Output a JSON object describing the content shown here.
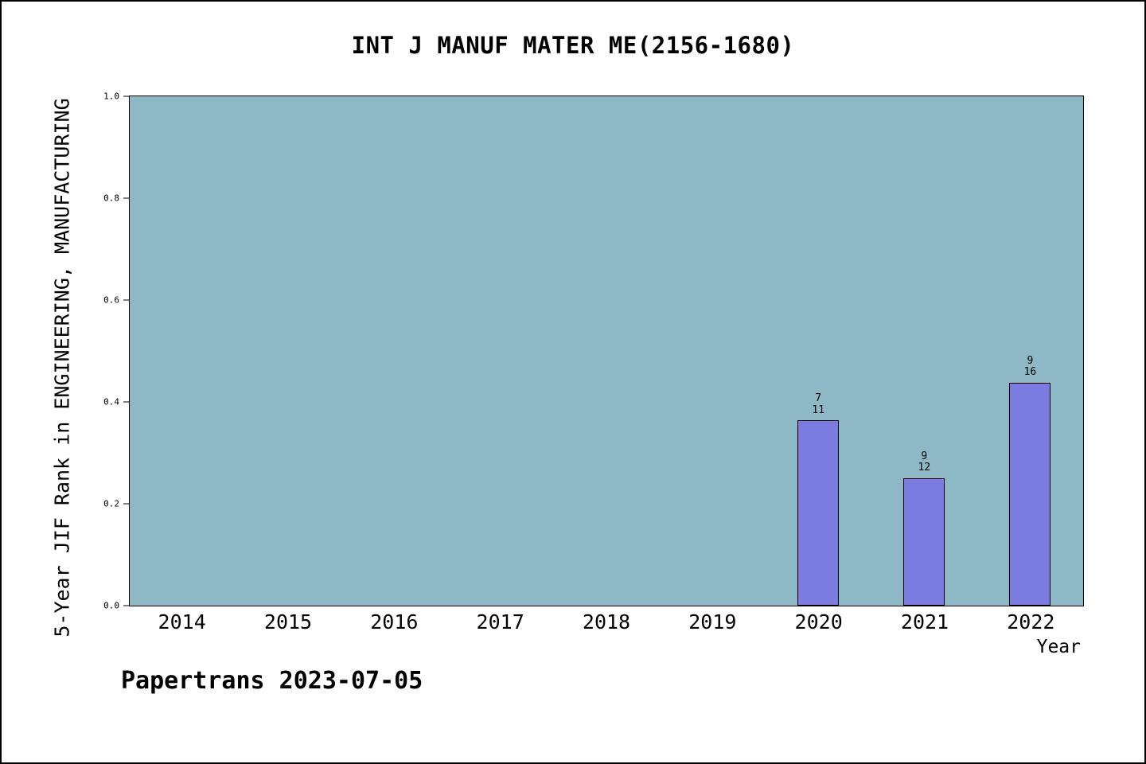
{
  "page": {
    "footer": "Papertrans 2023-07-05"
  },
  "chart_data": {
    "type": "bar",
    "title": "INT J MANUF MATER ME(2156-1680)",
    "xlabel": "Year",
    "ylabel": "5-Year JIF Rank in ENGINEERING, MANUFACTURING",
    "categories": [
      "2014",
      "2015",
      "2016",
      "2017",
      "2018",
      "2019",
      "2020",
      "2021",
      "2022"
    ],
    "ylim": [
      0.0,
      1.0
    ],
    "yticks": [
      "0.0",
      "0.2",
      "0.4",
      "0.6",
      "0.8",
      "1.0"
    ],
    "grid": false,
    "legend": null,
    "bars": [
      {
        "category": "2020",
        "value": 0.364,
        "rank": "7",
        "total": "11"
      },
      {
        "category": "2021",
        "value": 0.25,
        "rank": "9",
        "total": "12"
      },
      {
        "category": "2022",
        "value": 0.438,
        "rank": "9",
        "total": "16"
      }
    ],
    "colors": {
      "plot_bg": "#8fb8c6",
      "bar_fill": "#7b7be0",
      "bar_border": "#000000",
      "axis": "#000000"
    }
  }
}
